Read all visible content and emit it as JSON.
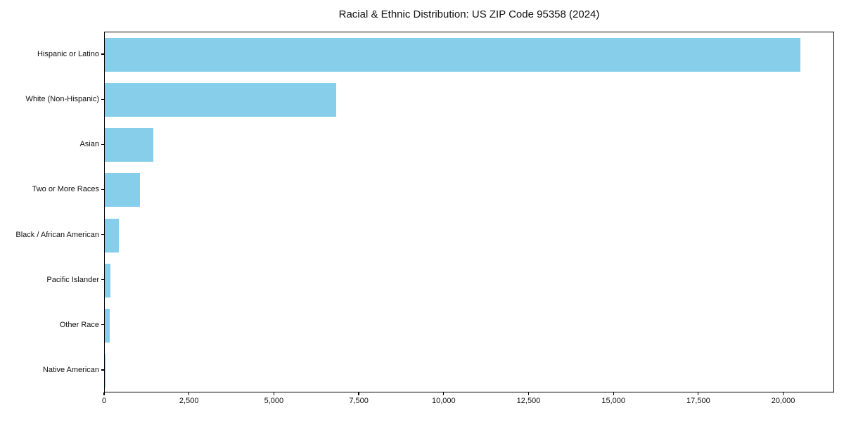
{
  "chart": {
    "bar_color": "#87CEEB",
    "spine_color": "#000000",
    "background_color": "#ffffff",
    "text_color": "#111111"
  },
  "chart_data": {
    "type": "bar",
    "orientation": "horizontal",
    "title": "Racial & Ethnic Distribution: US ZIP Code 95358 (2024)",
    "xlabel": "",
    "ylabel": "",
    "categories": [
      "Hispanic or Latino",
      "White (Non-Hispanic)",
      "Asian",
      "Two or More Races",
      "Black / African American",
      "Pacific Islander",
      "Other Race",
      "Native American"
    ],
    "values": [
      20480,
      6820,
      1430,
      1035,
      415,
      165,
      145,
      25
    ],
    "xlim": [
      0,
      21500
    ],
    "x_ticks": [
      0,
      2500,
      5000,
      7500,
      10000,
      12500,
      15000,
      17500,
      20000
    ],
    "x_tick_labels": [
      "0",
      "2,500",
      "5,000",
      "7,500",
      "10,000",
      "12,500",
      "15,000",
      "17,500",
      "20,000"
    ],
    "grid": false,
    "legend": "none"
  }
}
